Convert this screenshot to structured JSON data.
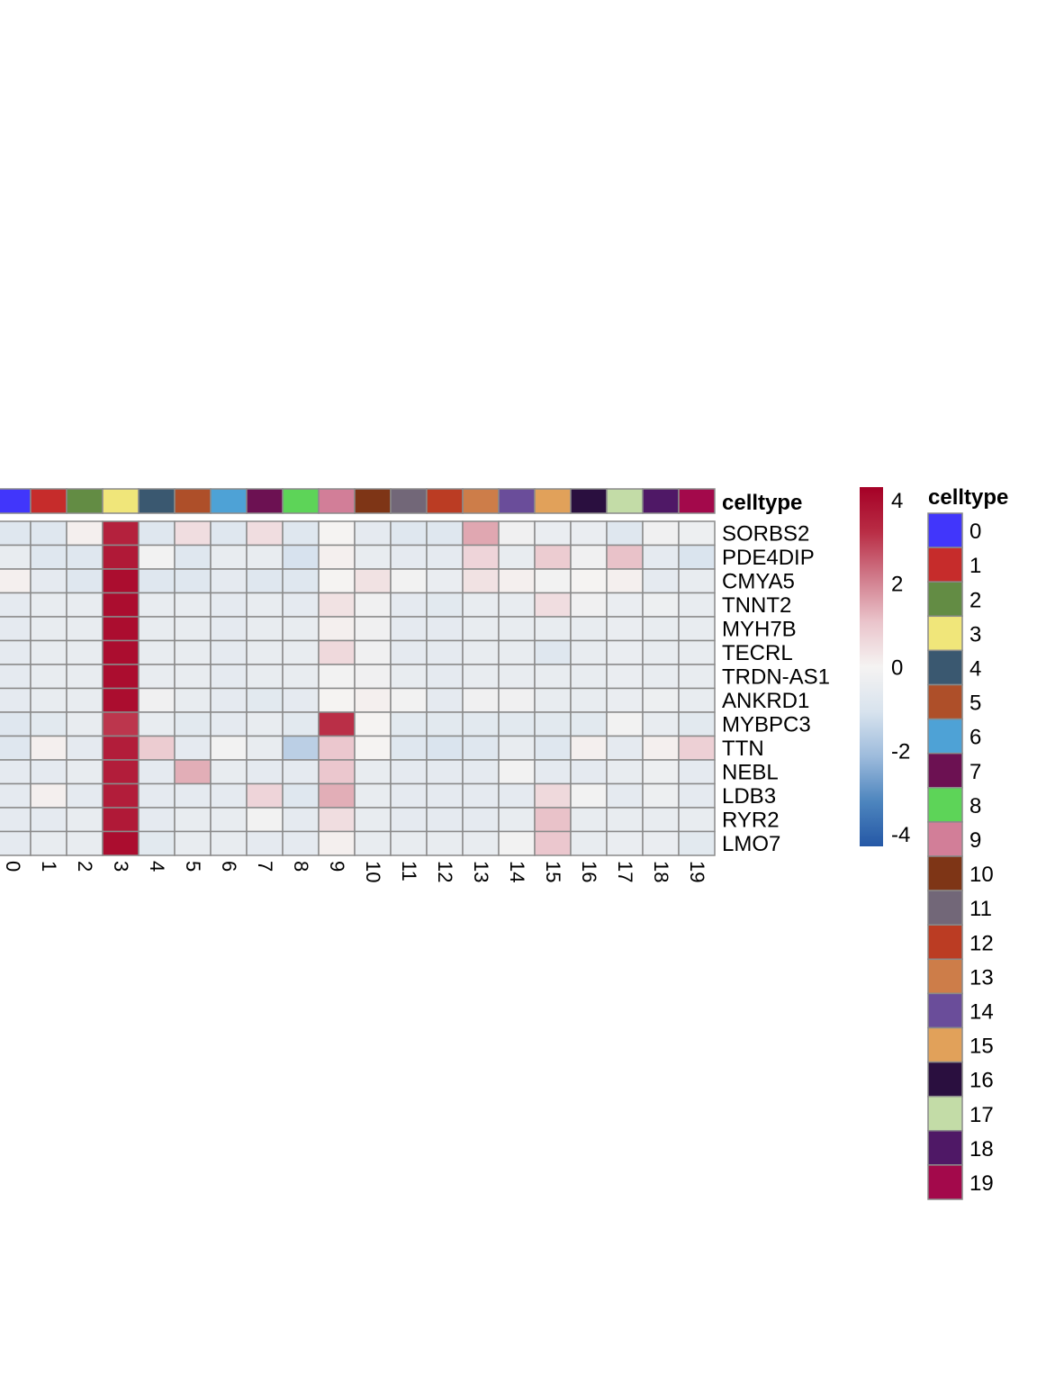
{
  "chart_data": {
    "type": "heatmap",
    "annotation_title": "celltype",
    "legend_title": "celltype",
    "columns": [
      "0",
      "1",
      "2",
      "3",
      "4",
      "5",
      "6",
      "7",
      "8",
      "9",
      "10",
      "11",
      "12",
      "13",
      "14",
      "15",
      "16",
      "17",
      "18",
      "19"
    ],
    "rows": [
      "SORBS2",
      "PDE4DIP",
      "CMYA5",
      "TNNT2",
      "MYH7B",
      "TECRL",
      "TRDN-AS1",
      "ANKRD1",
      "MYBPC3",
      "TTN",
      "NEBL",
      "LDB3",
      "RYR2",
      "LMO7"
    ],
    "values": [
      [
        -0.8,
        -0.8,
        0.1,
        3.5,
        -0.8,
        0.5,
        -0.8,
        0.5,
        -0.8,
        0.0,
        -0.6,
        -0.8,
        -0.8,
        1.5,
        -0.2,
        -0.4,
        -0.4,
        -0.8,
        -0.2,
        -0.3
      ],
      [
        -0.5,
        -0.8,
        -0.8,
        3.7,
        -0.1,
        -0.8,
        -0.5,
        -0.5,
        -1.1,
        0.1,
        -0.5,
        -0.6,
        -0.6,
        0.7,
        -0.5,
        0.9,
        -0.2,
        1.1,
        -0.6,
        -1.0
      ],
      [
        0.1,
        -0.6,
        -0.8,
        4.0,
        -0.8,
        -0.8,
        -0.6,
        -0.8,
        -0.8,
        0.0,
        0.4,
        -0.1,
        -0.4,
        0.4,
        0.1,
        -0.1,
        0.0,
        0.1,
        -0.6,
        -0.5
      ],
      [
        -0.6,
        -0.5,
        -0.5,
        4.0,
        -0.5,
        -0.5,
        -0.6,
        -0.5,
        -0.6,
        0.4,
        -0.2,
        -0.6,
        -0.7,
        -0.5,
        -0.5,
        0.5,
        -0.2,
        -0.4,
        -0.3,
        -0.5
      ],
      [
        -0.6,
        -0.5,
        -0.5,
        4.0,
        -0.5,
        -0.5,
        -0.6,
        -0.5,
        -0.5,
        0.1,
        -0.2,
        -0.6,
        -0.6,
        -0.5,
        -0.5,
        -0.5,
        -0.5,
        -0.4,
        -0.5,
        -0.5
      ],
      [
        -0.6,
        -0.5,
        -0.5,
        4.0,
        -0.5,
        -0.5,
        -0.6,
        -0.5,
        -0.5,
        0.6,
        -0.2,
        -0.6,
        -0.6,
        -0.5,
        -0.5,
        -0.8,
        -0.5,
        -0.4,
        -0.5,
        -0.5
      ],
      [
        -0.6,
        -0.5,
        -0.5,
        4.0,
        -0.5,
        -0.5,
        -0.6,
        -0.5,
        -0.5,
        -0.1,
        -0.2,
        -0.5,
        -0.6,
        -0.5,
        -0.5,
        -0.5,
        -0.5,
        -0.4,
        -0.5,
        -0.5
      ],
      [
        -0.6,
        -0.5,
        -0.5,
        4.0,
        -0.2,
        -0.5,
        -0.6,
        -0.7,
        -0.6,
        0.0,
        0.1,
        -0.1,
        -0.6,
        -0.2,
        -0.2,
        -0.5,
        -0.5,
        -0.4,
        -0.3,
        -0.5
      ],
      [
        -0.8,
        -0.7,
        -0.5,
        3.1,
        -0.5,
        -0.7,
        -0.6,
        -0.5,
        -0.7,
        3.2,
        0.0,
        -0.7,
        -0.7,
        -0.7,
        -0.7,
        -0.7,
        -0.7,
        -0.1,
        -0.5,
        -0.7
      ],
      [
        -0.8,
        0.1,
        -0.6,
        3.6,
        0.9,
        -0.6,
        -0.1,
        -0.5,
        -1.6,
        1.0,
        0.0,
        -0.8,
        -1.0,
        -0.8,
        -0.5,
        -0.8,
        0.1,
        -0.6,
        0.1,
        0.8
      ],
      [
        -0.6,
        -0.6,
        -0.5,
        3.6,
        -0.6,
        1.4,
        -0.5,
        -0.6,
        -0.6,
        1.0,
        -0.5,
        -0.6,
        -0.6,
        -0.6,
        -0.1,
        -0.6,
        -0.6,
        -0.5,
        -0.3,
        -0.6
      ],
      [
        -0.6,
        0.1,
        -0.6,
        3.6,
        -0.6,
        -0.6,
        -0.6,
        0.7,
        -0.8,
        1.4,
        -0.5,
        -0.6,
        -0.6,
        -0.6,
        -0.6,
        0.6,
        -0.1,
        -0.6,
        -0.3,
        -0.6
      ],
      [
        -0.6,
        -0.6,
        -0.5,
        3.7,
        -0.6,
        -0.5,
        -0.5,
        -0.1,
        -0.6,
        0.5,
        -0.5,
        -0.6,
        -0.6,
        -0.6,
        -0.5,
        1.1,
        -0.5,
        -0.5,
        -0.5,
        -0.5
      ],
      [
        -0.6,
        -0.5,
        -0.5,
        4.0,
        -0.7,
        -0.5,
        -0.5,
        -0.6,
        -0.6,
        0.1,
        -0.5,
        -0.5,
        -0.5,
        -0.5,
        -0.1,
        1.0,
        -0.5,
        -0.4,
        -0.4,
        -0.7
      ]
    ],
    "annotation_colors": [
      "#4136FB",
      "#C62C2B",
      "#638C44",
      "#F0E67A",
      "#3A5870",
      "#AE4F29",
      "#4EA2D6",
      "#6C1152",
      "#5DD458",
      "#D27E98",
      "#7E3516",
      "#726778",
      "#BB3C23",
      "#CD7D49",
      "#6A4D9A",
      "#E1A15A",
      "#2A0F3F",
      "#C3DCA7",
      "#4F1866",
      "#A3094B"
    ],
    "colorbar": {
      "range": [
        -4.3,
        4.3
      ],
      "ticks": [
        "4",
        "2",
        "0",
        "-2",
        "-4"
      ],
      "tick_values": [
        4,
        2,
        0,
        -2,
        -4
      ],
      "colors": [
        "#2558A6",
        "#4D85BE",
        "#9DBBDC",
        "#D8E3EE",
        "#F5F3F2",
        "#EAC4CB",
        "#D07A8A",
        "#B92D45",
        "#A50026"
      ]
    }
  }
}
